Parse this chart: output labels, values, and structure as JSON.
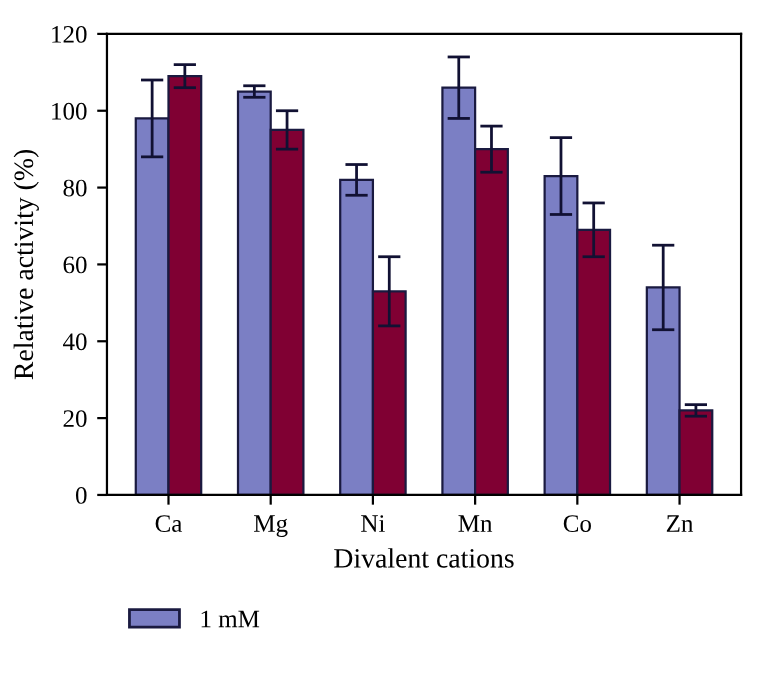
{
  "chart_data": {
    "type": "bar",
    "xlabel": "Divalent cations",
    "ylabel": "Relative activity (%)",
    "categories": [
      "Ca",
      "Mg",
      "Ni",
      "Mn",
      "Co",
      "Zn"
    ],
    "series": [
      {
        "name": "1 mM",
        "color": "#7b7fc4",
        "values": [
          98,
          105,
          82,
          106,
          83,
          54
        ],
        "errors": [
          10,
          1.5,
          4,
          8,
          10,
          11
        ]
      },
      {
        "color": "#800033",
        "values": [
          109,
          95,
          53,
          90,
          69,
          22
        ],
        "errors": [
          3,
          5,
          9,
          6,
          7,
          1.5
        ]
      }
    ],
    "ylim": [
      0,
      120
    ],
    "yticks": [
      0,
      20,
      40,
      60,
      80,
      100,
      120
    ],
    "grid": false,
    "legend": "bottom left"
  }
}
